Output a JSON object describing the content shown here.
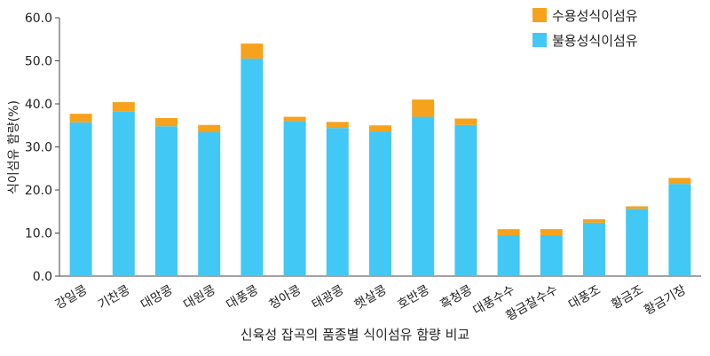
{
  "chart_data": {
    "type": "bar",
    "stacked": true,
    "title": "신육성 잡곡의 품종별 식이섬유 함량 비교",
    "xlabel": "",
    "ylabel": "식이섬유 함량(%)",
    "ylim": [
      0,
      60
    ],
    "yticks": [
      "0.0",
      "10.0",
      "20.0",
      "30.0",
      "40.0",
      "50.0",
      "60.0"
    ],
    "legend_position": "top-right",
    "grid": false,
    "categories": [
      "강일콩",
      "기찬콩",
      "대망콩",
      "대원콩",
      "대풍콩",
      "청아콩",
      "태광콩",
      "햇살콩",
      "호반콩",
      "흑청콩",
      "대풍수수",
      "황금찰수수",
      "대풍조",
      "황금조",
      "황금기장"
    ],
    "series": [
      {
        "name": "불용성식이섬유",
        "color": "#42c8f4",
        "values": [
          35.7,
          38.2,
          34.8,
          33.4,
          50.5,
          36.0,
          34.4,
          33.6,
          37.0,
          35.1,
          9.5,
          9.5,
          12.4,
          15.6,
          21.4
        ]
      },
      {
        "name": "수용성식이섬유",
        "color": "#f6a21c",
        "values": [
          2.0,
          2.2,
          1.9,
          1.7,
          3.5,
          1.0,
          1.4,
          1.4,
          4.0,
          1.5,
          1.4,
          1.4,
          0.8,
          0.6,
          1.4
        ]
      }
    ]
  }
}
